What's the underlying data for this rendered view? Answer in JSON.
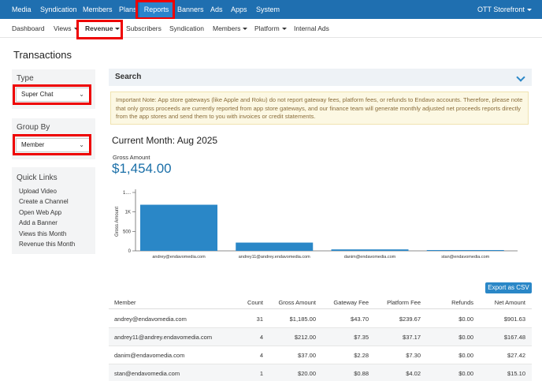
{
  "topnav": {
    "items": [
      "Media",
      "Syndication",
      "Members",
      "Plans",
      "Reports",
      "Banners",
      "Ads",
      "Apps",
      "System"
    ],
    "storefront": "OTT Storefront"
  },
  "subnav": {
    "items": [
      "Dashboard",
      "Views",
      "Revenue",
      "Subscribers",
      "Syndication",
      "Members",
      "Platform",
      "Internal Ads"
    ]
  },
  "page": {
    "title": "Transactions"
  },
  "filters": {
    "type_label": "Type",
    "type_value": "Super Chat",
    "group_label": "Group By",
    "group_value": "Member"
  },
  "quick_links": {
    "title": "Quick Links",
    "items": [
      "Upload Video",
      "Create a Channel",
      "Open Web App",
      "Add a Banner",
      "Views this Month",
      "Revenue this Month"
    ]
  },
  "search": {
    "label": "Search"
  },
  "notice": "Important Note: App store gateways (like Apple and Roku) do not report gateway fees, platform fees, or refunds to Endavo accounts. Therefore, please note that only gross proceeds are currently reported from app store gateways, and our finance team will generate monthly adjusted net proceeds reports directly from the app stores and send them to you with invoices or credit statements.",
  "summary": {
    "month_title": "Current Month: Aug 2025",
    "gross_label": "Gross Amount",
    "gross_value": "$1,454.00"
  },
  "chart_data": {
    "type": "bar",
    "categories": [
      "andrey@endavomedia.com",
      "andrey11@andrey.endavomedia.com",
      "danim@endavomedia.com",
      "stan@endavomedia.com"
    ],
    "values": [
      1185,
      212,
      37,
      20
    ],
    "ylabel": "Gross Amount",
    "yticks": [
      "0",
      "500",
      "1K",
      "1...."
    ],
    "ylim": [
      0,
      1500
    ],
    "grid": false,
    "color": "#2a87c7"
  },
  "export": {
    "label": "Export as CSV"
  },
  "table": {
    "headers": [
      "Member",
      "Count",
      "Gross Amount",
      "Gateway Fee",
      "Platform Fee",
      "Refunds",
      "Net Amount"
    ],
    "rows": [
      [
        "andrey@endavomedia.com",
        "31",
        "$1,185.00",
        "$43.70",
        "$239.67",
        "$0.00",
        "$901.63"
      ],
      [
        "andrey11@andrey.endavomedia.com",
        "4",
        "$212.00",
        "$7.35",
        "$37.17",
        "$0.00",
        "$167.48"
      ],
      [
        "danim@endavomedia.com",
        "4",
        "$37.00",
        "$2.28",
        "$7.30",
        "$0.00",
        "$27.42"
      ],
      [
        "stan@endavomedia.com",
        "1",
        "$20.00",
        "$0.88",
        "$4.02",
        "$0.00",
        "$15.10"
      ]
    ]
  }
}
